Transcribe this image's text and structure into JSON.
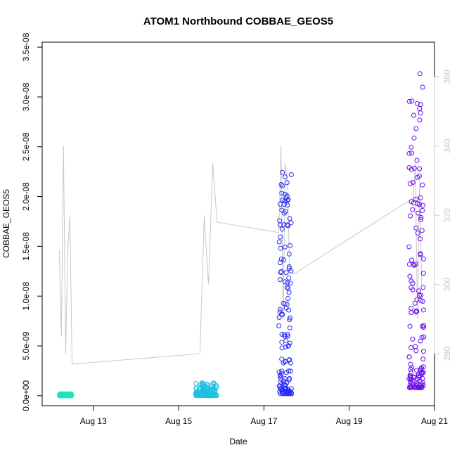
{
  "chart_data": {
    "type": "scatter",
    "title": "ATOM1 Northbound COBBAE_GEOS5",
    "xlabel": "Date",
    "ylabel": "COBBAE_GEOS5",
    "x_axis": {
      "unit": "days of August",
      "range": [
        11.8,
        21.0
      ],
      "ticks": [
        13,
        15,
        17,
        19,
        21
      ],
      "tick_labels": [
        "Aug 13",
        "Aug 15",
        "Aug 17",
        "Aug 19",
        "Aug 21"
      ]
    },
    "y_axis_left": {
      "range": [
        -1e-09,
        3.55e-08
      ],
      "ticks": [
        0,
        5e-09,
        1e-08,
        1.5e-08,
        2e-08,
        2.5e-08,
        3e-08,
        3.5e-08
      ],
      "tick_labels": [
        "0.0e+00",
        "5.0e-09",
        "1.0e-08",
        "1.5e-08",
        "2.0e-08",
        "2.5e-08",
        "3.0e-08",
        "3.5e-08"
      ]
    },
    "y_axis_right": {
      "color": "#c8c8c8",
      "range": [
        265,
        370
      ],
      "ticks": [
        280,
        300,
        320,
        340,
        360
      ],
      "tick_labels": [
        "280",
        "300",
        "320",
        "340",
        "360"
      ]
    },
    "grid": false,
    "line_series": {
      "color": "#c8c8c8",
      "x": [
        12.2,
        12.25,
        12.3,
        12.35,
        12.4,
        12.45,
        12.5,
        15.5,
        15.6,
        15.7,
        15.8,
        15.9,
        17.35,
        17.4,
        17.45,
        17.5,
        17.55,
        17.6,
        17.7,
        20.5,
        20.55,
        20.6,
        20.65,
        20.7
      ],
      "y": [
        310,
        285,
        340,
        280,
        310,
        320,
        277,
        280,
        320,
        300,
        335,
        318,
        315,
        340,
        290,
        335,
        330,
        305,
        303,
        325,
        335,
        290,
        330,
        300
      ]
    },
    "point_clusters": [
      {
        "x_start": 12.2,
        "x_end": 12.5,
        "y_min": 0.0,
        "y_max": 2e-10,
        "color": "#17e8bc"
      },
      {
        "x_start": 15.4,
        "x_end": 15.9,
        "y_min": 0.0,
        "y_max": 1.3e-09,
        "color": "#1ec0e0"
      },
      {
        "x_start": 17.35,
        "x_end": 17.65,
        "y_min": 2e-10,
        "y_max": 2.3e-08,
        "color": "#2a2cf2"
      },
      {
        "x_start": 20.4,
        "x_end": 20.75,
        "y_min": 8e-10,
        "y_max": 3.4e-08,
        "color": "#6a0bf0"
      }
    ]
  }
}
